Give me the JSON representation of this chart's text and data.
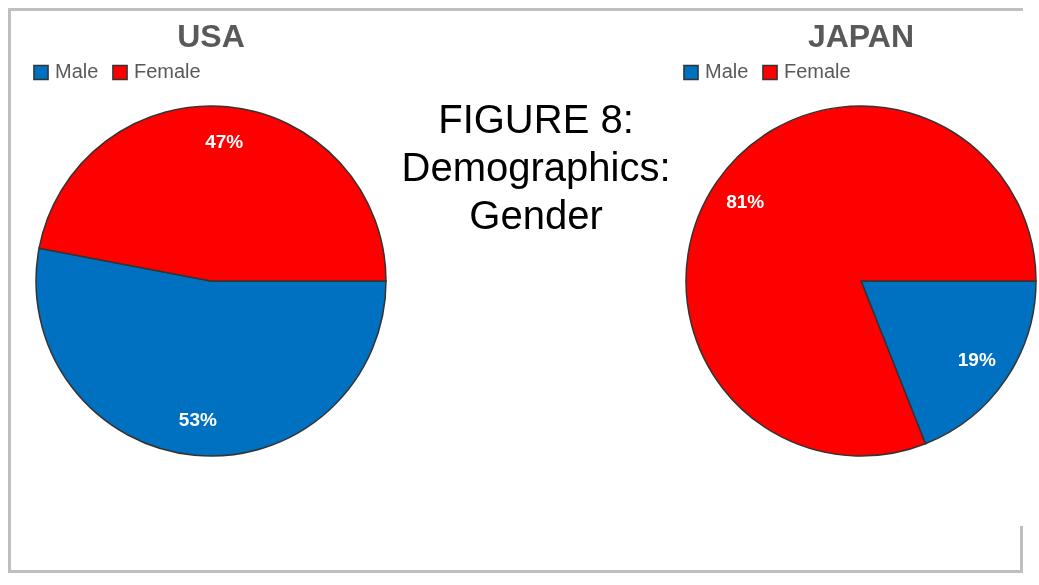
{
  "chart_data": [
    {
      "type": "other",
      "title": "FIGURE 8:\nDemographics:\nGender"
    },
    {
      "type": "pie",
      "title": "USA",
      "categories": [
        "Male",
        "Female"
      ],
      "values": [
        53,
        47
      ],
      "colors": [
        "#0070c0",
        "#ff0000"
      ],
      "value_labels": [
        "53%",
        "47%"
      ],
      "legend": "top"
    },
    {
      "type": "pie",
      "title": "JAPAN",
      "categories": [
        "Male",
        "Female"
      ],
      "values": [
        19,
        81
      ],
      "colors": [
        "#0070c0",
        "#ff0000"
      ],
      "value_labels": [
        "19%",
        "81%"
      ],
      "legend": "top"
    }
  ]
}
